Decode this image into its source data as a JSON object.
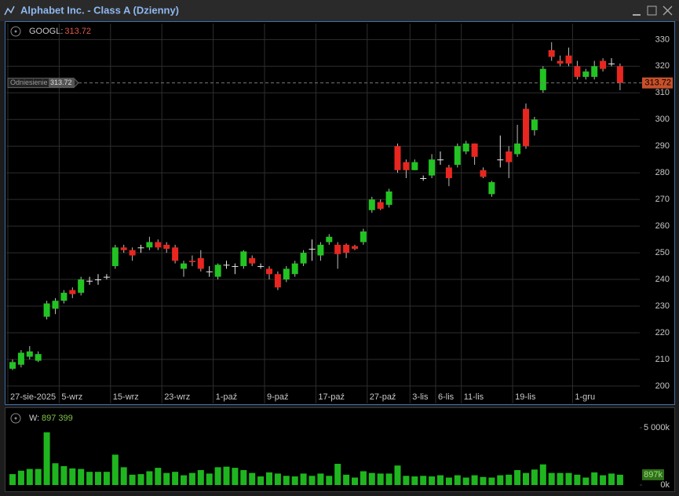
{
  "window_title": "Alphabet Inc. - Class A (Dzienny)",
  "chart_data": [
    {
      "type": "candlestick",
      "symbol": "GOOGL:",
      "reference_label": "Odniesienie",
      "up_color": "#22c322",
      "down_color": "#e8261f",
      "doji_color": "#e6e6e6",
      "categories": [
        "27-sie-2025",
        null,
        null,
        null,
        null,
        null,
        "5-wrz",
        null,
        null,
        null,
        null,
        null,
        "15-wrz",
        null,
        null,
        null,
        null,
        null,
        "23-wrz",
        null,
        null,
        null,
        null,
        null,
        "1-paź",
        null,
        null,
        null,
        null,
        null,
        "9-paź",
        null,
        null,
        null,
        null,
        null,
        "17-paź",
        null,
        null,
        null,
        null,
        null,
        "27-paź",
        null,
        null,
        null,
        null,
        "3-lis",
        null,
        null,
        "6-lis",
        null,
        null,
        "11-lis",
        null,
        null,
        null,
        null,
        null,
        "19-lis",
        null,
        null,
        null,
        null,
        null,
        null,
        "1-gru",
        null,
        null,
        null,
        null,
        null
      ],
      "open": [
        206.5,
        208,
        211,
        209.5,
        226,
        229,
        232,
        236,
        235,
        239.5,
        240,
        241,
        245,
        252,
        251,
        252,
        252,
        254,
        253,
        252,
        244,
        247,
        248,
        243,
        241,
        245.5,
        245,
        245,
        248,
        245,
        244,
        242,
        240,
        242,
        246,
        251.5,
        249,
        254,
        253,
        253,
        252.5,
        254,
        266,
        269,
        268,
        290,
        284,
        281,
        278,
        279,
        285,
        282,
        283,
        288,
        291,
        281,
        272,
        285,
        288,
        287,
        304,
        296,
        311,
        326,
        322,
        324,
        320,
        316,
        316,
        322,
        321,
        320
      ],
      "high": [
        210,
        213.5,
        215,
        213,
        232,
        233,
        236,
        237,
        241,
        241,
        242,
        242,
        253,
        253,
        252,
        253,
        256,
        255,
        254,
        253,
        247,
        249,
        251,
        245,
        246,
        247,
        246,
        251,
        249,
        246,
        245,
        243,
        245,
        247,
        251,
        255,
        254,
        257,
        254,
        253.5,
        253,
        259,
        271,
        270,
        274,
        291,
        285,
        285,
        279,
        287,
        288,
        283,
        291,
        292,
        291,
        282,
        277,
        294,
        290,
        298,
        306,
        301,
        320,
        329,
        324,
        327,
        322,
        319,
        322,
        323,
        323,
        321
      ],
      "low": [
        206,
        207,
        210,
        209,
        225,
        227,
        231,
        233,
        234,
        238,
        238,
        240,
        244,
        250,
        247,
        250,
        251,
        251,
        250,
        246,
        241,
        245,
        243,
        241,
        240,
        244,
        242,
        244,
        245,
        244,
        240,
        236,
        239,
        241,
        245,
        247,
        247,
        253,
        244,
        248,
        251,
        253,
        265,
        266,
        267,
        280,
        278,
        281,
        277,
        278,
        283,
        275,
        282,
        287,
        283,
        278,
        271,
        282,
        278,
        286,
        289,
        294,
        310,
        322,
        320,
        320,
        315,
        315,
        315,
        318,
        320,
        311
      ],
      "close": [
        209,
        212.5,
        213,
        212,
        231,
        232,
        235,
        234.5,
        240,
        239.5,
        240,
        241,
        252,
        251,
        249,
        252,
        254,
        252,
        251.5,
        247,
        246,
        246.5,
        244,
        243,
        245.5,
        245.5,
        245,
        250.5,
        246,
        245,
        242,
        237,
        244,
        246,
        250,
        251.5,
        253,
        256,
        249.5,
        250,
        251.5,
        258,
        270,
        266.5,
        273,
        281,
        281,
        284,
        278,
        285,
        285,
        278,
        290,
        291,
        286,
        278.5,
        276.5,
        285,
        284,
        291,
        290,
        300,
        319,
        323.5,
        321,
        321,
        316,
        318,
        320,
        319,
        321,
        313.72
      ],
      "ylim": [
        198.5,
        336
      ],
      "yticks": [
        200,
        210,
        220,
        230,
        240,
        250,
        260,
        270,
        280,
        290,
        300,
        310,
        320,
        330
      ],
      "grid": true
    },
    {
      "type": "bar",
      "name": "W:",
      "color": "#1fb51f",
      "values": [
        950000,
        1250000,
        1400000,
        1400000,
        4600000,
        1900000,
        1650000,
        1450000,
        1400000,
        1150000,
        1150000,
        1150000,
        2650000,
        1550000,
        900000,
        950000,
        1200000,
        1500000,
        1050000,
        1150000,
        850000,
        1050000,
        1300000,
        1000000,
        1550000,
        1600000,
        1500000,
        1300000,
        1050000,
        750000,
        1100000,
        1000000,
        800000,
        750000,
        1000000,
        800000,
        1000000,
        800000,
        1850000,
        900000,
        650000,
        1200000,
        1050000,
        1000000,
        1000000,
        1700000,
        800000,
        750000,
        800000,
        750000,
        850000,
        650000,
        850000,
        650000,
        850000,
        700000,
        650000,
        850000,
        900000,
        1300000,
        1050000,
        1350000,
        1800000,
        1050000,
        1050000,
        1050000,
        900000,
        650000,
        1100000,
        850000,
        1000000,
        897399
      ],
      "value_labels": {
        "71": [
          "897 399",
          "897k"
        ]
      },
      "ylim": [
        0,
        5000000
      ],
      "yticks": [
        {
          "value": 0,
          "label": "0k"
        },
        {
          "value": 5000000,
          "label": "5 000k"
        }
      ]
    }
  ]
}
